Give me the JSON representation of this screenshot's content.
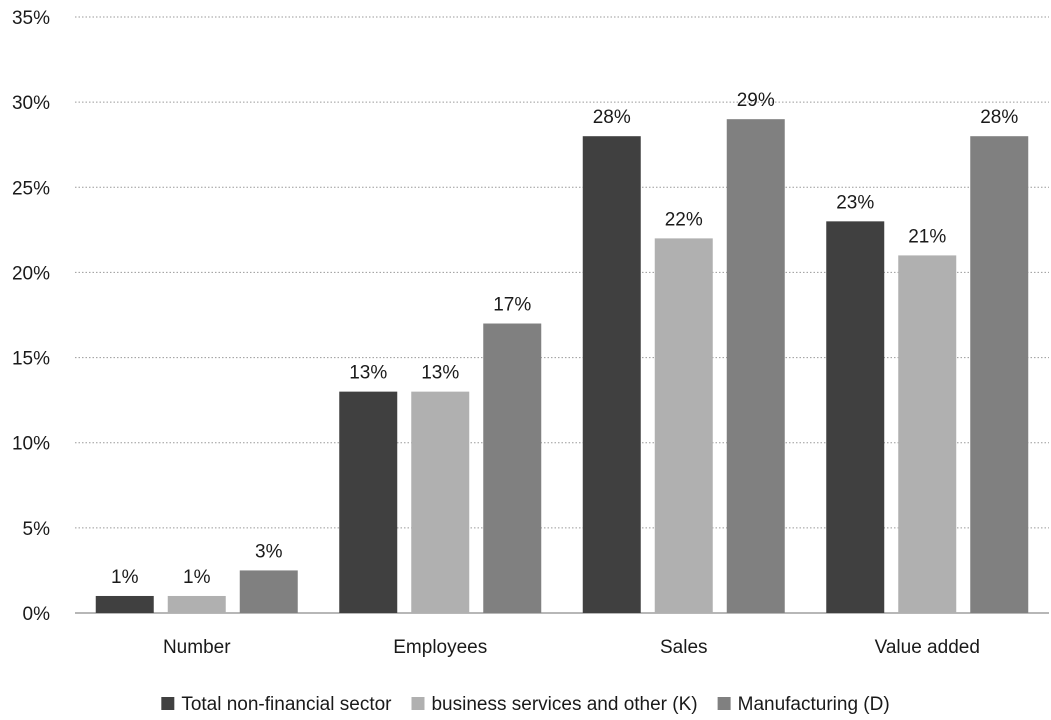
{
  "chart_data": {
    "type": "bar",
    "title": "",
    "xlabel": "",
    "ylabel": "",
    "ylim": [
      0,
      35
    ],
    "y_ticks": [
      0,
      5,
      10,
      15,
      20,
      25,
      30,
      35
    ],
    "y_tick_labels": [
      "0%",
      "5%",
      "10%",
      "15%",
      "20%",
      "25%",
      "30%",
      "35%"
    ],
    "grid": "horizontal dotted",
    "legend_position": "bottom",
    "categories": [
      "Number",
      "Employees",
      "Sales",
      "Value added"
    ],
    "series": [
      {
        "name": "Total non-financial sector",
        "color": "#404040",
        "values": [
          1,
          13,
          28,
          23
        ],
        "labels": [
          "1%",
          "13%",
          "28%",
          "23%"
        ]
      },
      {
        "name": "business services and other (K)",
        "color": "#b0b0b0",
        "values": [
          1,
          13,
          22,
          21
        ],
        "labels": [
          "1%",
          "13%",
          "22%",
          "21%"
        ]
      },
      {
        "name": "Manufacturing (D)",
        "color": "#808080",
        "values": [
          2.5,
          17,
          29,
          28
        ],
        "labels": [
          "3%",
          "17%",
          "29%",
          "28%"
        ]
      }
    ]
  }
}
